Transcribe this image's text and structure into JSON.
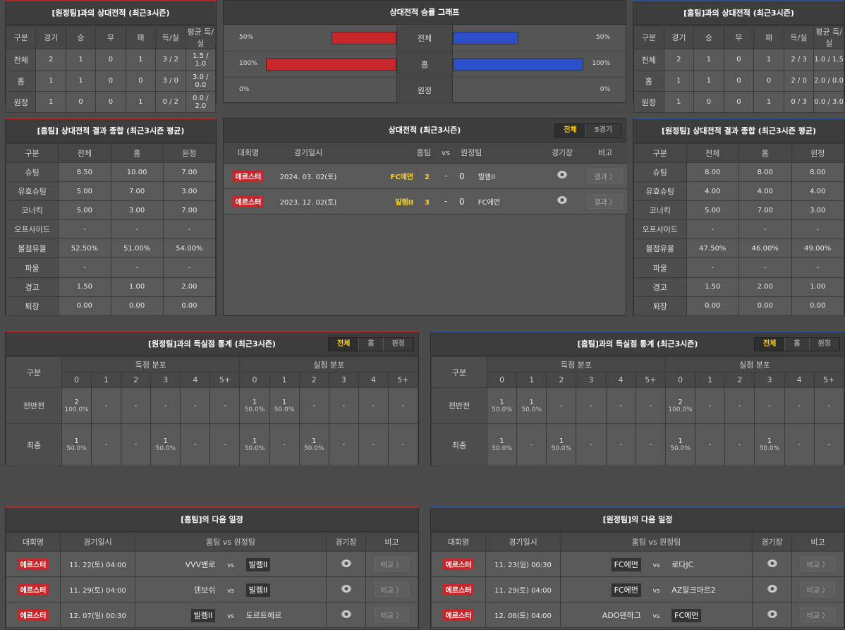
{
  "h2h_away": {
    "title": "[원정팀]과의 상대전적 (최근3시즌)",
    "headers": [
      "구분",
      "경기",
      "승",
      "무",
      "패",
      "득/실",
      "평균 득/실"
    ],
    "rows": [
      [
        "전체",
        "2",
        "1",
        "0",
        "1",
        "3 / 2",
        "1.5 / 1.0"
      ],
      [
        "홈",
        "1",
        "1",
        "0",
        "0",
        "3 / 0",
        "3.0 / 0.0"
      ],
      [
        "원정",
        "1",
        "0",
        "0",
        "1",
        "0 / 2",
        "0.0 / 2.0"
      ]
    ]
  },
  "graph": {
    "title": "상대전적 승률 그래프",
    "rows": [
      {
        "label": "전체",
        "home_pct": "50%",
        "away_pct": "50%",
        "home": 50,
        "away": 50
      },
      {
        "label": "홈",
        "home_pct": "100%",
        "away_pct": "100%",
        "home": 100,
        "away": 100
      },
      {
        "label": "원정",
        "home_pct": "0%",
        "away_pct": "0%",
        "home": 0,
        "away": 0
      }
    ],
    "colors": {
      "home": "#c8262a",
      "away": "#2a4fc8"
    }
  },
  "h2h_home": {
    "title": "[홈팀]과의 상대전적 (최근3시즌)",
    "headers": [
      "구분",
      "경기",
      "승",
      "무",
      "패",
      "득/실",
      "평균 득/실"
    ],
    "rows": [
      [
        "전체",
        "2",
        "1",
        "0",
        "1",
        "2 / 3",
        "1.0 / 1.5"
      ],
      [
        "홈",
        "1",
        "1",
        "0",
        "0",
        "2 / 0",
        "2.0 / 0.0"
      ],
      [
        "원정",
        "1",
        "0",
        "0",
        "1",
        "0 / 3",
        "0.0 / 3.0"
      ]
    ]
  },
  "home_summary": {
    "title": "[홈팀] 상대전적 결과 종합 (최근3시즌 평균)",
    "headers": [
      "구분",
      "전체",
      "홈",
      "원정"
    ],
    "rows": [
      [
        "슈팅",
        "8.50",
        "10.00",
        "7.00"
      ],
      [
        "유효슈팅",
        "5.00",
        "7.00",
        "3.00"
      ],
      [
        "코너킥",
        "5.00",
        "3.00",
        "7.00"
      ],
      [
        "오프사이드",
        "-",
        "-",
        "-"
      ],
      [
        "볼점유율",
        "52.50%",
        "51.00%",
        "54.00%"
      ],
      [
        "파울",
        "-",
        "-",
        "-"
      ],
      [
        "경고",
        "1.50",
        "1.00",
        "2.00"
      ],
      [
        "퇴장",
        "0.00",
        "0.00",
        "0.00"
      ]
    ]
  },
  "away_summary": {
    "title": "[원정팀] 상대전적 결과 종합 (최근3시즌 평균)",
    "headers": [
      "구분",
      "전체",
      "홈",
      "원정"
    ],
    "rows": [
      [
        "슈팅",
        "8.00",
        "8.00",
        "8.00"
      ],
      [
        "유효슈팅",
        "4.00",
        "4.00",
        "4.00"
      ],
      [
        "코너킥",
        "5.00",
        "7.00",
        "3.00"
      ],
      [
        "오프사이드",
        "-",
        "-",
        "-"
      ],
      [
        "볼점유율",
        "47.50%",
        "46.00%",
        "49.00%"
      ],
      [
        "파울",
        "-",
        "-",
        "-"
      ],
      [
        "경고",
        "1.50",
        "2.00",
        "1.00"
      ],
      [
        "퇴장",
        "0.00",
        "0.00",
        "0.00"
      ]
    ]
  },
  "h2h_list": {
    "title": "상대전적 (최근3시즌)",
    "tabs": [
      "전체",
      "5경기"
    ],
    "headers": [
      "대회명",
      "경기일시",
      "홈팀",
      "vs",
      "원정팀",
      "경기장",
      "비고"
    ],
    "matches": [
      {
        "league": "에르스터",
        "date": "2024. 03. 02(토)",
        "home": "FC에먼",
        "hs": "2",
        "dash": "-",
        "as": "0",
        "away": "빌렘II",
        "btn": "결과 〉"
      },
      {
        "league": "에르스터",
        "date": "2023. 12. 02(토)",
        "home": "빌렘II",
        "hs": "3",
        "dash": "-",
        "as": "0",
        "away": "FC에먼",
        "btn": "결과 〉"
      }
    ]
  },
  "goals_left": {
    "title": "[원정팀]과의 득실점 통계 (최근3시즌)",
    "tabs": [
      "전체",
      "홈",
      "원정"
    ],
    "label": "구분",
    "groups": [
      "득점 분포",
      "실점 분포"
    ],
    "cols": [
      "0",
      "1",
      "2",
      "3",
      "4",
      "5+",
      "0",
      "1",
      "2",
      "3",
      "4",
      "5+"
    ],
    "rows": [
      {
        "label": "전반전",
        "cells": [
          [
            "2",
            "100.0%"
          ],
          [
            "-",
            ""
          ],
          [
            "-",
            ""
          ],
          [
            "-",
            ""
          ],
          [
            "-",
            ""
          ],
          [
            "-",
            ""
          ],
          [
            "1",
            "50.0%"
          ],
          [
            "1",
            "50.0%"
          ],
          [
            "-",
            ""
          ],
          [
            "-",
            ""
          ],
          [
            "-",
            ""
          ],
          [
            "-",
            ""
          ]
        ]
      },
      {
        "label": "최종",
        "cells": [
          [
            "1",
            "50.0%"
          ],
          [
            "-",
            ""
          ],
          [
            "-",
            ""
          ],
          [
            "1",
            "50.0%"
          ],
          [
            "-",
            ""
          ],
          [
            "-",
            ""
          ],
          [
            "1",
            "50.0%"
          ],
          [
            "-",
            ""
          ],
          [
            "1",
            "50.0%"
          ],
          [
            "-",
            ""
          ],
          [
            "-",
            ""
          ],
          [
            "-",
            ""
          ]
        ]
      }
    ]
  },
  "goals_right": {
    "title": "[홈팀]과의 득실점 통계 (최근3시즌)",
    "tabs": [
      "전체",
      "홈",
      "원정"
    ],
    "label": "구분",
    "groups": [
      "득점 분포",
      "실점 분포"
    ],
    "cols": [
      "0",
      "1",
      "2",
      "3",
      "4",
      "5+",
      "0",
      "1",
      "2",
      "3",
      "4",
      "5+"
    ],
    "rows": [
      {
        "label": "전반전",
        "cells": [
          [
            "1",
            "50.0%"
          ],
          [
            "1",
            "50.0%"
          ],
          [
            "-",
            ""
          ],
          [
            "-",
            ""
          ],
          [
            "-",
            ""
          ],
          [
            "-",
            ""
          ],
          [
            "2",
            "100.0%"
          ],
          [
            "-",
            ""
          ],
          [
            "-",
            ""
          ],
          [
            "-",
            ""
          ],
          [
            "-",
            ""
          ],
          [
            "-",
            ""
          ]
        ]
      },
      {
        "label": "최종",
        "cells": [
          [
            "1",
            "50.0%"
          ],
          [
            "-",
            ""
          ],
          [
            "1",
            "50.0%"
          ],
          [
            "-",
            ""
          ],
          [
            "-",
            ""
          ],
          [
            "-",
            ""
          ],
          [
            "1",
            "50.0%"
          ],
          [
            "-",
            ""
          ],
          [
            "-",
            ""
          ],
          [
            "1",
            "50.0%"
          ],
          [
            "-",
            ""
          ],
          [
            "-",
            ""
          ]
        ]
      }
    ]
  },
  "next_home": {
    "title": "[홈팀]의 다음 일정",
    "headers": [
      "대회명",
      "경기일시",
      "홈팀  vs  원정팀",
      "경기장",
      "비고"
    ],
    "matches": [
      {
        "league": "에르스터",
        "date": "11. 22(토) 04:00",
        "home": "VVV벤로",
        "vs": "vs",
        "away": "빌렘II",
        "hl": "away",
        "btn": "비교 〉"
      },
      {
        "league": "에르스터",
        "date": "11. 29(토) 04:00",
        "home": "덴보쉬",
        "vs": "vs",
        "away": "빌렘II",
        "hl": "away",
        "btn": "비교 〉"
      },
      {
        "league": "에르스터",
        "date": "12. 07(일) 00:30",
        "home": "빌렘II",
        "vs": "vs",
        "away": "도르트헤르",
        "hl": "home",
        "btn": "비교 〉"
      }
    ]
  },
  "next_away": {
    "title": "[원정팀]의 다음 일정",
    "headers": [
      "대회명",
      "경기일시",
      "홈팀  vs  원정팀",
      "경기장",
      "비고"
    ],
    "matches": [
      {
        "league": "에르스터",
        "date": "11. 23(일) 00:30",
        "home": "FC에먼",
        "vs": "vs",
        "away": "로다JC",
        "hl": "home",
        "btn": "비교 〉"
      },
      {
        "league": "에르스터",
        "date": "11. 29(토) 04:00",
        "home": "FC에먼",
        "vs": "vs",
        "away": "AZ알크마르2",
        "hl": "home",
        "btn": "비교 〉"
      },
      {
        "league": "에르스터",
        "date": "12. 06(토) 04:00",
        "home": "ADO덴하그",
        "vs": "vs",
        "away": "FC에먼",
        "hl": "away",
        "btn": "비교 〉"
      }
    ]
  }
}
